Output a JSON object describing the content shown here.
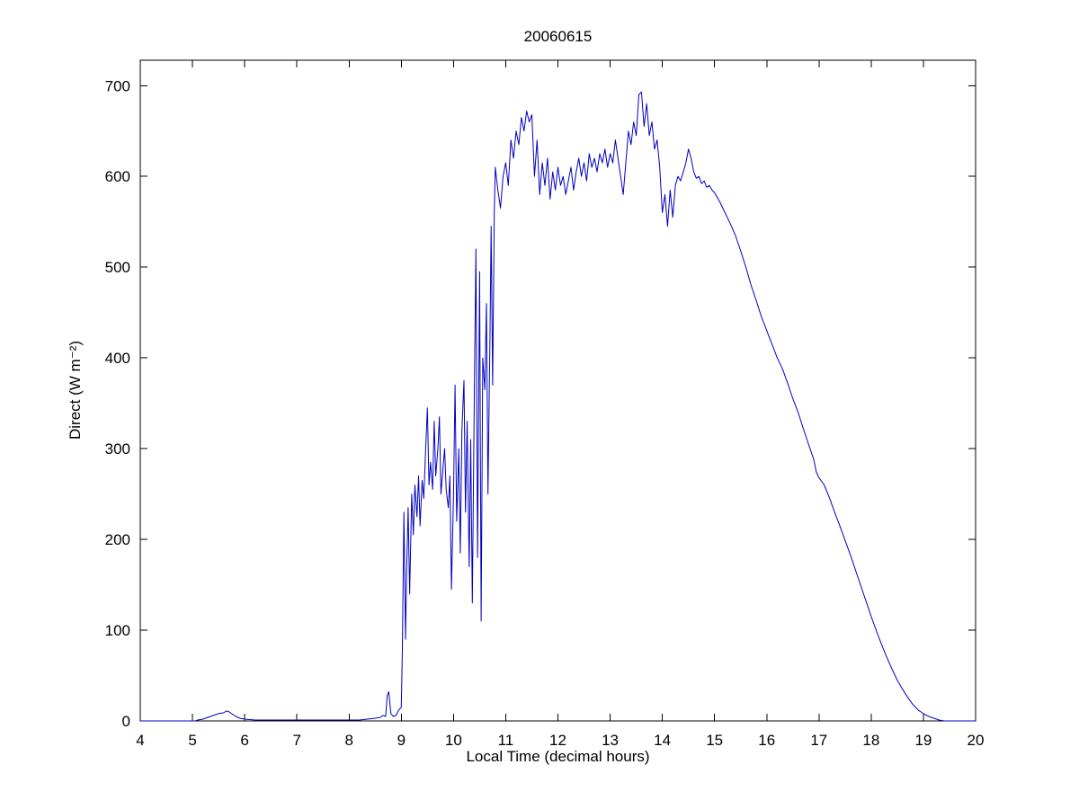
{
  "figure": {
    "background": "#ffffff",
    "text_color": "#000000"
  },
  "chart_data": {
    "type": "line",
    "title": "20060615",
    "xlabel": "Local Time (decimal hours)",
    "ylabel": "Direct (W m⁻²)",
    "xlim": [
      4,
      20
    ],
    "ylim": [
      0,
      700
    ],
    "xticks": [
      4,
      5,
      6,
      7,
      8,
      9,
      10,
      11,
      12,
      13,
      14,
      15,
      16,
      17,
      18,
      19,
      20
    ],
    "yticks": [
      0,
      100,
      200,
      300,
      400,
      500,
      600,
      700
    ],
    "grid": false,
    "legend": null,
    "line_color": "#0000C0",
    "points": [
      [
        4.0,
        0
      ],
      [
        4.3,
        0
      ],
      [
        4.6,
        0
      ],
      [
        4.9,
        0
      ],
      [
        5.05,
        0
      ],
      [
        5.1,
        1
      ],
      [
        5.2,
        2
      ],
      [
        5.3,
        4
      ],
      [
        5.4,
        6
      ],
      [
        5.5,
        8
      ],
      [
        5.6,
        9
      ],
      [
        5.65,
        11
      ],
      [
        5.7,
        10
      ],
      [
        5.8,
        6
      ],
      [
        5.9,
        3
      ],
      [
        6.0,
        2
      ],
      [
        6.2,
        1
      ],
      [
        6.5,
        1
      ],
      [
        7.0,
        1
      ],
      [
        7.5,
        1
      ],
      [
        8.0,
        1
      ],
      [
        8.2,
        1
      ],
      [
        8.35,
        2
      ],
      [
        8.5,
        3
      ],
      [
        8.6,
        4
      ],
      [
        8.65,
        6
      ],
      [
        8.7,
        5
      ],
      [
        8.73,
        28
      ],
      [
        8.76,
        32
      ],
      [
        8.8,
        8
      ],
      [
        8.85,
        5
      ],
      [
        8.9,
        6
      ],
      [
        8.95,
        12
      ],
      [
        9.0,
        15
      ],
      [
        9.02,
        80
      ],
      [
        9.05,
        230
      ],
      [
        9.08,
        90
      ],
      [
        9.1,
        160
      ],
      [
        9.13,
        235
      ],
      [
        9.16,
        140
      ],
      [
        9.2,
        250
      ],
      [
        9.23,
        205
      ],
      [
        9.26,
        260
      ],
      [
        9.3,
        225
      ],
      [
        9.33,
        270
      ],
      [
        9.36,
        215
      ],
      [
        9.4,
        265
      ],
      [
        9.43,
        245
      ],
      [
        9.46,
        290
      ],
      [
        9.5,
        345
      ],
      [
        9.53,
        260
      ],
      [
        9.56,
        285
      ],
      [
        9.6,
        255
      ],
      [
        9.63,
        330
      ],
      [
        9.66,
        270
      ],
      [
        9.7,
        300
      ],
      [
        9.73,
        335
      ],
      [
        9.76,
        250
      ],
      [
        9.8,
        280
      ],
      [
        9.83,
        300
      ],
      [
        9.86,
        255
      ],
      [
        9.9,
        235
      ],
      [
        9.93,
        270
      ],
      [
        9.96,
        145
      ],
      [
        10.0,
        250
      ],
      [
        10.03,
        370
      ],
      [
        10.06,
        220
      ],
      [
        10.1,
        300
      ],
      [
        10.13,
        185
      ],
      [
        10.16,
        320
      ],
      [
        10.2,
        375
      ],
      [
        10.23,
        230
      ],
      [
        10.26,
        330
      ],
      [
        10.3,
        170
      ],
      [
        10.33,
        310
      ],
      [
        10.36,
        130
      ],
      [
        10.4,
        370
      ],
      [
        10.43,
        520
      ],
      [
        10.46,
        180
      ],
      [
        10.5,
        495
      ],
      [
        10.53,
        110
      ],
      [
        10.56,
        400
      ],
      [
        10.6,
        365
      ],
      [
        10.63,
        460
      ],
      [
        10.66,
        250
      ],
      [
        10.7,
        430
      ],
      [
        10.72,
        545
      ],
      [
        10.75,
        370
      ],
      [
        10.78,
        560
      ],
      [
        10.8,
        610
      ],
      [
        10.85,
        585
      ],
      [
        10.9,
        565
      ],
      [
        10.95,
        600
      ],
      [
        11.0,
        615
      ],
      [
        11.05,
        590
      ],
      [
        11.1,
        640
      ],
      [
        11.15,
        620
      ],
      [
        11.2,
        650
      ],
      [
        11.25,
        635
      ],
      [
        11.3,
        665
      ],
      [
        11.35,
        650
      ],
      [
        11.4,
        672
      ],
      [
        11.45,
        660
      ],
      [
        11.5,
        668
      ],
      [
        11.55,
        600
      ],
      [
        11.6,
        640
      ],
      [
        11.65,
        580
      ],
      [
        11.7,
        615
      ],
      [
        11.75,
        590
      ],
      [
        11.8,
        620
      ],
      [
        11.85,
        575
      ],
      [
        11.9,
        605
      ],
      [
        11.95,
        585
      ],
      [
        12.0,
        610
      ],
      [
        12.05,
        590
      ],
      [
        12.1,
        600
      ],
      [
        12.15,
        580
      ],
      [
        12.2,
        595
      ],
      [
        12.25,
        610
      ],
      [
        12.3,
        585
      ],
      [
        12.35,
        605
      ],
      [
        12.4,
        620
      ],
      [
        12.45,
        600
      ],
      [
        12.5,
        615
      ],
      [
        12.55,
        595
      ],
      [
        12.6,
        625
      ],
      [
        12.65,
        610
      ],
      [
        12.7,
        620
      ],
      [
        12.75,
        605
      ],
      [
        12.8,
        625
      ],
      [
        12.85,
        615
      ],
      [
        12.9,
        630
      ],
      [
        12.95,
        610
      ],
      [
        13.0,
        625
      ],
      [
        13.05,
        615
      ],
      [
        13.1,
        640
      ],
      [
        13.15,
        620
      ],
      [
        13.2,
        600
      ],
      [
        13.25,
        580
      ],
      [
        13.3,
        615
      ],
      [
        13.35,
        650
      ],
      [
        13.4,
        635
      ],
      [
        13.45,
        660
      ],
      [
        13.5,
        645
      ],
      [
        13.55,
        690
      ],
      [
        13.6,
        693
      ],
      [
        13.65,
        655
      ],
      [
        13.7,
        680
      ],
      [
        13.75,
        645
      ],
      [
        13.8,
        660
      ],
      [
        13.85,
        630
      ],
      [
        13.9,
        640
      ],
      [
        13.95,
        610
      ],
      [
        14.0,
        560
      ],
      [
        14.05,
        580
      ],
      [
        14.1,
        545
      ],
      [
        14.15,
        585
      ],
      [
        14.2,
        555
      ],
      [
        14.25,
        590
      ],
      [
        14.3,
        600
      ],
      [
        14.35,
        595
      ],
      [
        14.4,
        605
      ],
      [
        14.45,
        615
      ],
      [
        14.5,
        630
      ],
      [
        14.55,
        620
      ],
      [
        14.6,
        605
      ],
      [
        14.65,
        598
      ],
      [
        14.7,
        600
      ],
      [
        14.75,
        592
      ],
      [
        14.8,
        595
      ],
      [
        14.85,
        588
      ],
      [
        14.9,
        590
      ],
      [
        14.95,
        585
      ],
      [
        15.0,
        582
      ],
      [
        15.1,
        572
      ],
      [
        15.2,
        560
      ],
      [
        15.3,
        548
      ],
      [
        15.4,
        535
      ],
      [
        15.5,
        518
      ],
      [
        15.6,
        500
      ],
      [
        15.7,
        480
      ],
      [
        15.8,
        463
      ],
      [
        15.9,
        445
      ],
      [
        16.0,
        430
      ],
      [
        16.1,
        415
      ],
      [
        16.2,
        400
      ],
      [
        16.3,
        388
      ],
      [
        16.4,
        372
      ],
      [
        16.5,
        355
      ],
      [
        16.6,
        340
      ],
      [
        16.7,
        322
      ],
      [
        16.8,
        305
      ],
      [
        16.9,
        288
      ],
      [
        16.95,
        274
      ],
      [
        17.0,
        268
      ],
      [
        17.1,
        260
      ],
      [
        17.2,
        246
      ],
      [
        17.3,
        230
      ],
      [
        17.4,
        215
      ],
      [
        17.5,
        199
      ],
      [
        17.6,
        183
      ],
      [
        17.7,
        166
      ],
      [
        17.8,
        149
      ],
      [
        17.9,
        132
      ],
      [
        18.0,
        115
      ],
      [
        18.1,
        99
      ],
      [
        18.2,
        84
      ],
      [
        18.3,
        70
      ],
      [
        18.4,
        57
      ],
      [
        18.5,
        45
      ],
      [
        18.6,
        35
      ],
      [
        18.7,
        26
      ],
      [
        18.8,
        18
      ],
      [
        18.9,
        12
      ],
      [
        19.0,
        8
      ],
      [
        19.1,
        5
      ],
      [
        19.2,
        3
      ],
      [
        19.3,
        1
      ],
      [
        19.4,
        0
      ],
      [
        19.6,
        0
      ],
      [
        19.8,
        0
      ],
      [
        20.0,
        0
      ]
    ]
  }
}
